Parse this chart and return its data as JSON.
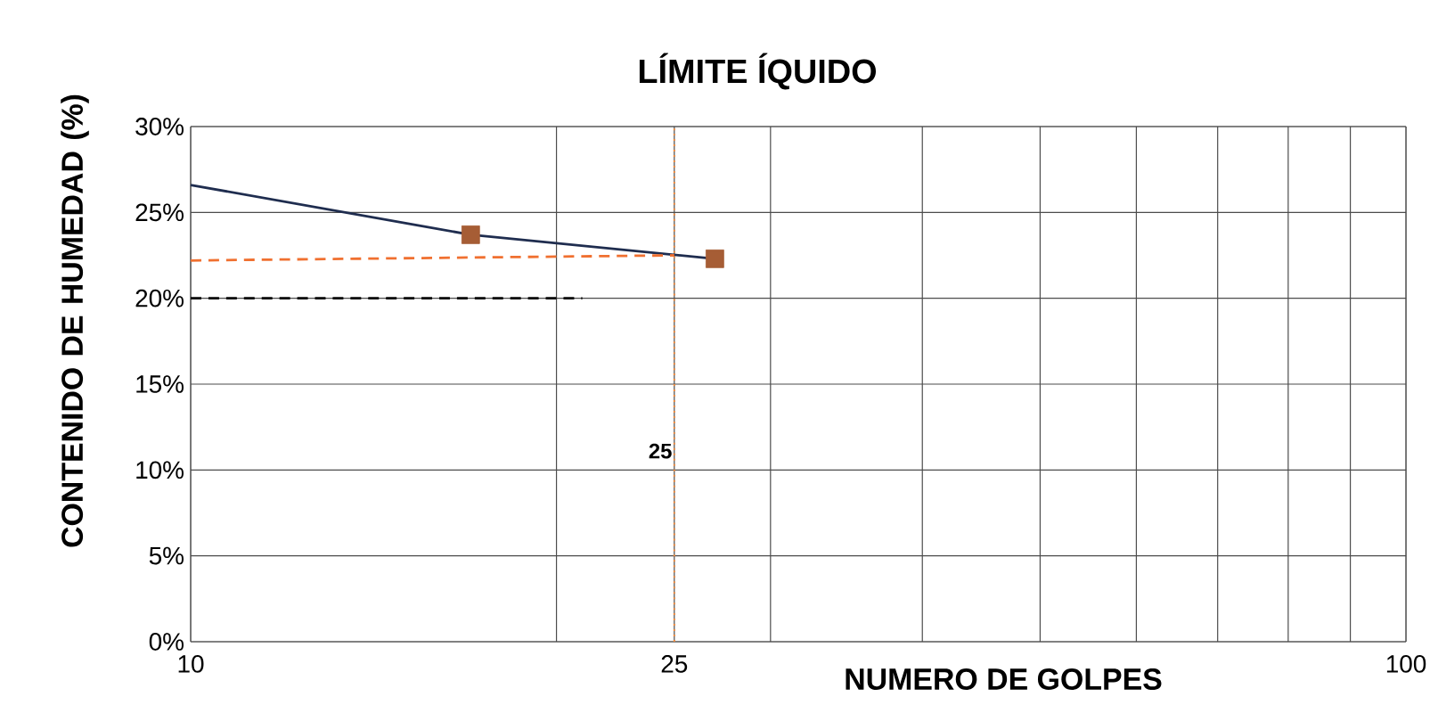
{
  "chart_data": {
    "type": "line",
    "title": "LÍMITE ÍQUIDO",
    "xlabel": "NUMERO DE GOLPES",
    "ylabel": "CONTENIDO DE HUMEDAD (%)",
    "log": "x",
    "grid": true,
    "xlim": [
      10,
      100
    ],
    "xticks": [
      10,
      {
        "value": 20,
        "label": null
      },
      25,
      {
        "value": 30,
        "label": null
      },
      {
        "value": 40,
        "label": null
      },
      {
        "value": 50,
        "label": null
      },
      {
        "value": 60,
        "label": null
      },
      {
        "value": 70,
        "label": null
      },
      {
        "value": 80,
        "label": null
      },
      {
        "value": 90,
        "label": null
      },
      100
    ],
    "ylim": [
      0,
      30
    ],
    "yticks": [
      {
        "value": 0,
        "label": "0%"
      },
      {
        "value": 5,
        "label": "5%"
      },
      {
        "value": 10,
        "label": "10%"
      },
      {
        "value": 15,
        "label": "15%"
      },
      {
        "value": 20,
        "label": "20%"
      },
      {
        "value": 25,
        "label": "25%"
      },
      {
        "value": 30,
        "label": "30%"
      }
    ],
    "series": [
      {
        "color": "#1f2d4f",
        "x": [
          10,
          17,
          27
        ],
        "values": [
          26.6,
          23.7,
          22.3
        ],
        "marker": "none",
        "line_style": "solid"
      },
      {
        "type": "scatter",
        "color": "#a65d35",
        "x": [
          17,
          27
        ],
        "values": [
          23.7,
          22.3
        ],
        "marker": "square"
      },
      {
        "color": "#f07030",
        "x": [
          10,
          25
        ],
        "values": [
          22.2,
          22.5
        ],
        "marker": "none",
        "line_style": "dashed"
      },
      {
        "color": "#000000",
        "x": [
          10,
          21
        ],
        "values": [
          20,
          20
        ],
        "marker": "none",
        "line_style": "dashed"
      }
    ],
    "ref_lines": [
      {
        "axis": "x",
        "value": 25,
        "label": "25",
        "color": "#f08c40",
        "line_style": "dotted"
      }
    ]
  }
}
